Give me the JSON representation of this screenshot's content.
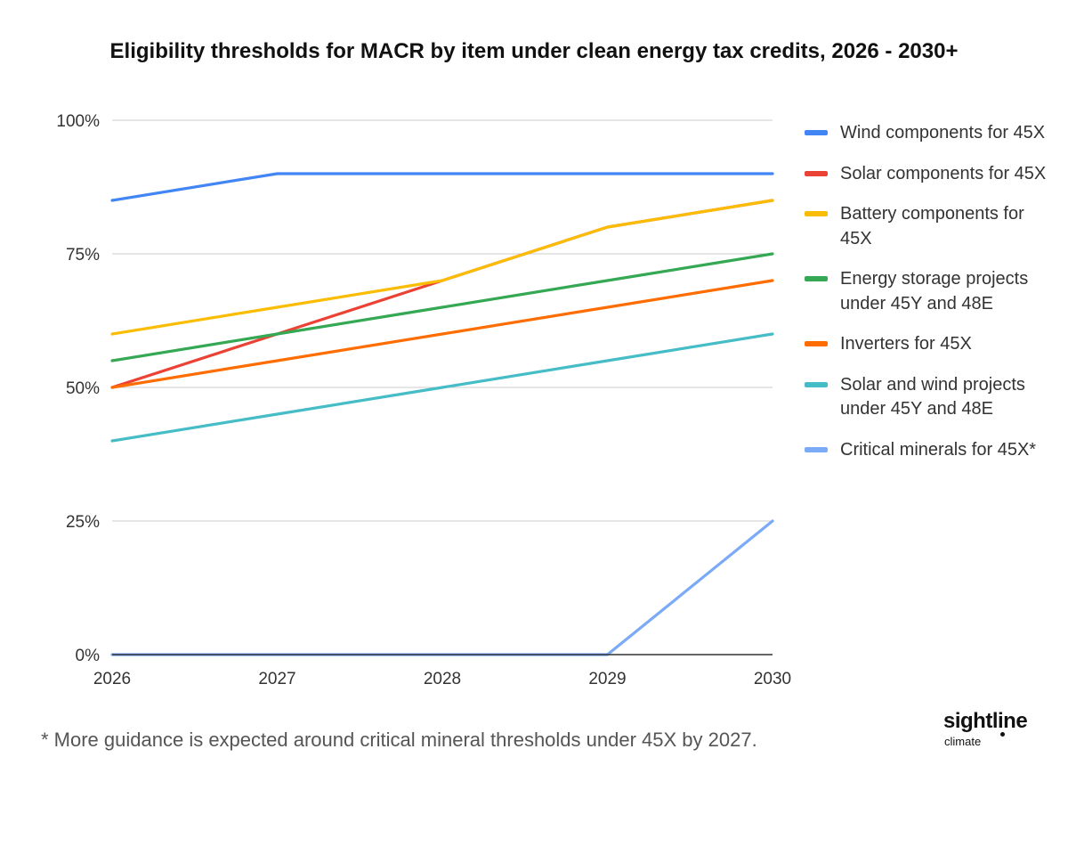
{
  "title": "Eligibility thresholds for MACR by item under clean energy tax credits, 2026 - 2030+",
  "footnote": "* More guidance is expected around critical mineral thresholds under 45X by 2027.",
  "logo": {
    "main": "sightline",
    "sub": "climate"
  },
  "chart_data": {
    "type": "line",
    "title": "Eligibility thresholds for MACR by item under clean energy tax credits, 2026 - 2030+",
    "xlabel": "",
    "ylabel": "",
    "x": [
      2026,
      2027,
      2028,
      2029,
      2030
    ],
    "x_tick_labels": [
      "2026",
      "2027",
      "2028",
      "2029",
      "2030"
    ],
    "ylim": [
      0,
      100
    ],
    "y_ticks": [
      0,
      25,
      50,
      75,
      100
    ],
    "y_tick_labels": [
      "0%",
      "25%",
      "50%",
      "75%",
      "100%"
    ],
    "grid": true,
    "legend_position": "right",
    "series": [
      {
        "name": "Wind components for 45X",
        "color": "#4285F4",
        "values": [
          85,
          90,
          90,
          90,
          90
        ]
      },
      {
        "name": "Solar components for 45X",
        "color": "#EA4335",
        "values": [
          50,
          60,
          70,
          80,
          85
        ]
      },
      {
        "name": "Battery components for 45X",
        "color": "#FBBC04",
        "values": [
          60,
          65,
          70,
          80,
          85
        ]
      },
      {
        "name": "Energy storage projects under 45Y and 48E",
        "color": "#34A853",
        "values": [
          55,
          60,
          65,
          70,
          75
        ]
      },
      {
        "name": "Inverters for 45X",
        "color": "#FF6D01",
        "values": [
          50,
          55,
          60,
          65,
          70
        ]
      },
      {
        "name": "Solar and wind projects under 45Y and 48E",
        "color": "#46BDC6",
        "values": [
          40,
          45,
          50,
          55,
          60
        ]
      },
      {
        "name": "Critical minerals for 45X*",
        "color": "#7BAAF7",
        "values": [
          0,
          0,
          0,
          0,
          25
        ]
      }
    ]
  }
}
